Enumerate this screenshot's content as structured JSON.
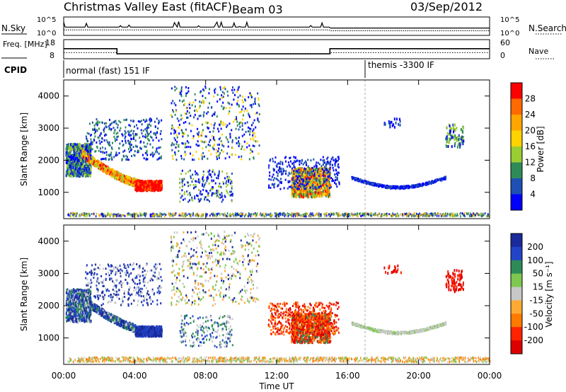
{
  "header": {
    "title": "Christmas Valley East (fitACF)",
    "beam": "Beam 03",
    "date": "03/Sep/2012"
  },
  "chart_data": [
    {
      "type": "line",
      "panel": "noise",
      "left_label": "N.Sky",
      "right_label": "N.Search",
      "left_ticks": [
        "10^5",
        "10^0"
      ],
      "right_ticks": [
        "10^5",
        "10^0"
      ]
    },
    {
      "type": "line",
      "panel": "frequency-nave",
      "left_label": "Freq. [MHz]",
      "right_label": "Nave",
      "left_ticks": [
        "18",
        "8"
      ],
      "right_ticks": [
        "60",
        "0"
      ],
      "freq_mhz": [
        {
          "start": "00:00",
          "end": "03:00",
          "value": 13.5
        },
        {
          "start": "03:00",
          "end": "15:00",
          "value": 10.5
        },
        {
          "start": "15:00",
          "end": "24:00",
          "value": 13.5
        }
      ],
      "nave_dotted": [
        {
          "start": "00:00",
          "end": "03:00",
          "value": 19
        },
        {
          "start": "03:00",
          "end": "15:00",
          "value": 14
        },
        {
          "start": "15:00",
          "end": "24:00",
          "value": 19
        }
      ]
    },
    {
      "type": "table",
      "panel": "cpid",
      "label": "CPID",
      "segments": [
        {
          "start": "00:00",
          "end": "17:00",
          "text": "normal (fast) 151 IF"
        },
        {
          "start": "17:00",
          "end": "24:00",
          "text": "themis -3300 IF"
        }
      ]
    },
    {
      "type": "heatmap",
      "panel": "power",
      "ylabel": "Slant Range [km]",
      "yticks": [
        1000,
        2000,
        3000,
        4000
      ],
      "ylim": [
        180,
        4500
      ],
      "colorbar_label": "Power [dB]",
      "colorbar_ticks": [
        28,
        24,
        20,
        16,
        12,
        8,
        4
      ],
      "colorbar_colors": [
        "#ff0000",
        "#ff6a00",
        "#ffa500",
        "#ffd200",
        "#9acd32",
        "#2e8b57",
        "#1e50b4",
        "#0000ff"
      ]
    },
    {
      "type": "heatmap",
      "panel": "velocity",
      "ylabel": "Slant Range [km]",
      "yticks": [
        1000,
        2000,
        3000,
        4000
      ],
      "ylim": [
        180,
        4500
      ],
      "colorbar_label": "Velocity [m s⁻¹]",
      "colorbar_ticks": [
        200,
        100,
        50,
        15,
        -15,
        -50,
        -100,
        -200
      ],
      "colorbar_colors": [
        "#1a2a9a",
        "#2244c8",
        "#2e8b57",
        "#7ec850",
        "#c8c8c8",
        "#ffaa33",
        "#ff7a00",
        "#ff2200",
        "#dd0000"
      ]
    }
  ],
  "xaxis": {
    "label": "Time UT",
    "ticks": [
      "00:00",
      "04:00",
      "08:00",
      "12:00",
      "16:00",
      "20:00",
      "00:00"
    ],
    "range_hours": [
      0,
      24
    ]
  }
}
